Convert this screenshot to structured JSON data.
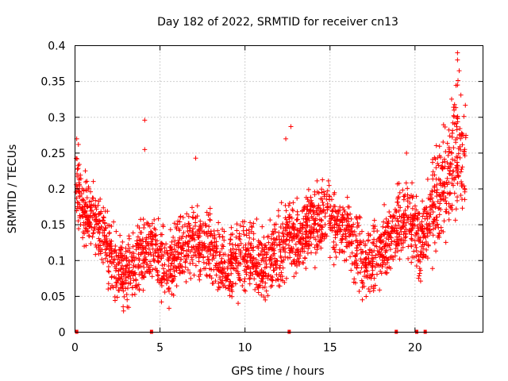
{
  "chart_data": {
    "type": "scatter",
    "title": "Day 182 of 2022, SRMTID for receiver cn13",
    "xlabel": "GPS time / hours",
    "ylabel": "SRMTID / TECUs",
    "xlim": [
      0,
      24
    ],
    "ylim": [
      0,
      0.4
    ],
    "x_ticks": [
      0,
      5,
      10,
      15,
      20
    ],
    "x_tick_labels": [
      "0",
      "5",
      "10",
      "15",
      "20"
    ],
    "y_ticks": [
      0,
      0.05,
      0.1,
      0.15,
      0.2,
      0.25,
      0.3,
      0.35,
      0.4
    ],
    "y_tick_labels": [
      "0",
      "0.05",
      "0.1",
      "0.15",
      "0.2",
      "0.25",
      "0.3",
      "0.35",
      "0.4"
    ],
    "grid": true,
    "marker": "+",
    "color": "#ff0000",
    "series": [
      {
        "name": "SRMTID",
        "trend": [
          {
            "x": 0.0,
            "y": 0.22
          },
          {
            "x": 0.5,
            "y": 0.17
          },
          {
            "x": 1.0,
            "y": 0.16
          },
          {
            "x": 1.5,
            "y": 0.14
          },
          {
            "x": 2.0,
            "y": 0.11
          },
          {
            "x": 2.5,
            "y": 0.09
          },
          {
            "x": 3.0,
            "y": 0.085
          },
          {
            "x": 3.5,
            "y": 0.09
          },
          {
            "x": 4.0,
            "y": 0.11
          },
          {
            "x": 4.5,
            "y": 0.12
          },
          {
            "x": 5.0,
            "y": 0.1
          },
          {
            "x": 5.5,
            "y": 0.09
          },
          {
            "x": 6.0,
            "y": 0.1
          },
          {
            "x": 6.5,
            "y": 0.12
          },
          {
            "x": 7.0,
            "y": 0.13
          },
          {
            "x": 7.5,
            "y": 0.12
          },
          {
            "x": 8.0,
            "y": 0.11
          },
          {
            "x": 8.5,
            "y": 0.1
          },
          {
            "x": 9.0,
            "y": 0.09
          },
          {
            "x": 9.5,
            "y": 0.1
          },
          {
            "x": 10.0,
            "y": 0.11
          },
          {
            "x": 10.5,
            "y": 0.1
          },
          {
            "x": 11.0,
            "y": 0.09
          },
          {
            "x": 11.5,
            "y": 0.1
          },
          {
            "x": 12.0,
            "y": 0.11
          },
          {
            "x": 12.5,
            "y": 0.14
          },
          {
            "x": 13.0,
            "y": 0.13
          },
          {
            "x": 13.5,
            "y": 0.14
          },
          {
            "x": 14.0,
            "y": 0.15
          },
          {
            "x": 14.5,
            "y": 0.16
          },
          {
            "x": 15.0,
            "y": 0.16
          },
          {
            "x": 15.5,
            "y": 0.15
          },
          {
            "x": 16.0,
            "y": 0.14
          },
          {
            "x": 16.5,
            "y": 0.12
          },
          {
            "x": 17.0,
            "y": 0.09
          },
          {
            "x": 17.5,
            "y": 0.1
          },
          {
            "x": 18.0,
            "y": 0.12
          },
          {
            "x": 18.5,
            "y": 0.13
          },
          {
            "x": 19.0,
            "y": 0.15
          },
          {
            "x": 19.5,
            "y": 0.17
          },
          {
            "x": 20.0,
            "y": 0.14
          },
          {
            "x": 20.3,
            "y": 0.12
          },
          {
            "x": 20.7,
            "y": 0.15
          },
          {
            "x": 21.0,
            "y": 0.18
          },
          {
            "x": 21.5,
            "y": 0.2
          },
          {
            "x": 22.0,
            "y": 0.22
          },
          {
            "x": 22.5,
            "y": 0.25
          },
          {
            "x": 23.0,
            "y": 0.24
          }
        ],
        "outliers": [
          {
            "x": 4.1,
            "y": 0.296
          },
          {
            "x": 4.1,
            "y": 0.255
          },
          {
            "x": 12.7,
            "y": 0.287
          },
          {
            "x": 12.4,
            "y": 0.27
          },
          {
            "x": 22.5,
            "y": 0.39
          },
          {
            "x": 22.5,
            "y": 0.38
          },
          {
            "x": 22.6,
            "y": 0.365
          },
          {
            "x": 22.5,
            "y": 0.345
          },
          {
            "x": 22.7,
            "y": 0.331
          },
          {
            "x": 22.3,
            "y": 0.31
          },
          {
            "x": 0.1,
            "y": 0.27
          },
          {
            "x": 0.2,
            "y": 0.262
          },
          {
            "x": 7.1,
            "y": 0.243
          },
          {
            "x": 19.5,
            "y": 0.25
          }
        ],
        "zero_points": [
          {
            "x": 0.1,
            "y": 0
          },
          {
            "x": 4.5,
            "y": 0
          },
          {
            "x": 12.6,
            "y": 0
          },
          {
            "x": 18.9,
            "y": 0
          },
          {
            "x": 20.1,
            "y": 0
          },
          {
            "x": 20.6,
            "y": 0
          }
        ]
      }
    ]
  }
}
